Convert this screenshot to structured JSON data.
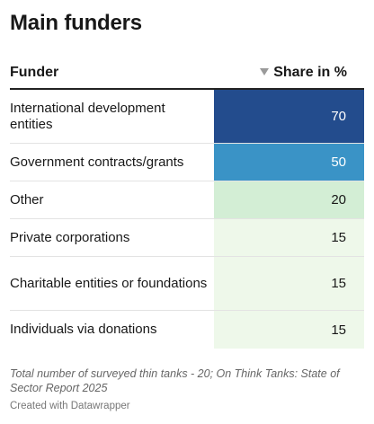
{
  "title": "Main funders",
  "columns": {
    "funder": "Funder",
    "share": "Share in %"
  },
  "chart_data": {
    "type": "table",
    "title": "Main funders",
    "columns": [
      "Funder",
      "Share in %"
    ],
    "sort": {
      "column": "Share in %",
      "direction": "descending"
    },
    "rows": [
      {
        "funder": "International development entities",
        "share": 70,
        "color": "#234c8d",
        "text_color": "#ffffff"
      },
      {
        "funder": "Government contracts/grants",
        "share": 50,
        "color": "#3a93c6",
        "text_color": "#ffffff"
      },
      {
        "funder": "Other",
        "share": 20,
        "color": "#d3eed5",
        "text_color": "#181818"
      },
      {
        "funder": "Private corporations",
        "share": 15,
        "color": "#eef8ea",
        "text_color": "#181818"
      },
      {
        "funder": "Charitable entities or foundations",
        "share": 15,
        "color": "#eef8ea",
        "text_color": "#181818"
      },
      {
        "funder": "Individuals via donations",
        "share": 15,
        "color": "#eef8ea",
        "text_color": "#181818"
      }
    ]
  },
  "footer": {
    "note": "Total number of surveyed thin tanks - 20; On Think Tanks: State of Sector Report 2025",
    "credit": "Created with Datawrapper"
  }
}
